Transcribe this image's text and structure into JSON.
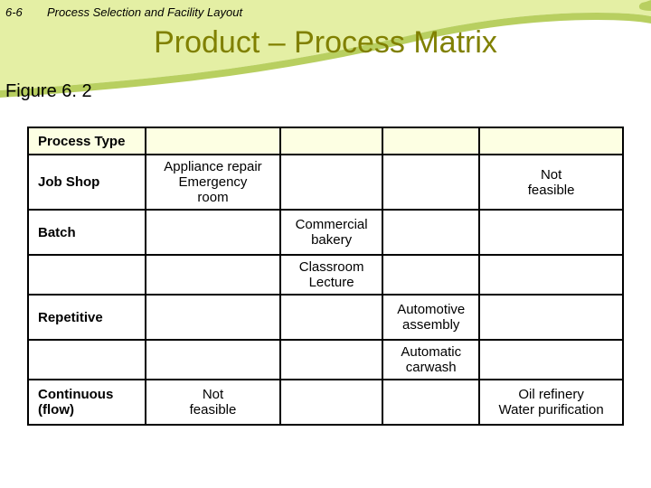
{
  "page": {
    "num": "6-6",
    "chapter": "Process Selection and Facility Layout"
  },
  "title": "Product – Process Matrix",
  "figure_label": "Figure 6. 2",
  "matrix": {
    "header": "Process Type",
    "rows": {
      "r1": {
        "label": "Job Shop",
        "c1": "Appliance repair\nEmergency\nroom",
        "c2": "",
        "c3": "",
        "c4": "Not\nfeasible"
      },
      "r2": {
        "label": "Batch",
        "c1": "",
        "c2": "Commercial\nbakery",
        "c3": "",
        "c4": ""
      },
      "r3": {
        "label": "",
        "c1": "",
        "c2": "Classroom\nLecture",
        "c3": "",
        "c4": ""
      },
      "r4": {
        "label": "Repetitive",
        "c1": "",
        "c2": "",
        "c3": "Automotive\nassembly",
        "c4": ""
      },
      "r5": {
        "label": "",
        "c1": "",
        "c2": "",
        "c3": "Automatic\ncarwash",
        "c4": ""
      },
      "r6": {
        "label": "Continuous\n(flow)",
        "c1": "Not\nfeasible",
        "c2": "",
        "c3": "",
        "c4": "Oil refinery\nWater purification"
      }
    }
  },
  "style": {
    "swoosh_main": "#e4efa4",
    "swoosh_dark": "#b8cf60",
    "title_color": "#808000",
    "header_bg": "#fdffe3",
    "border": "#000000",
    "bg": "#ffffff"
  }
}
